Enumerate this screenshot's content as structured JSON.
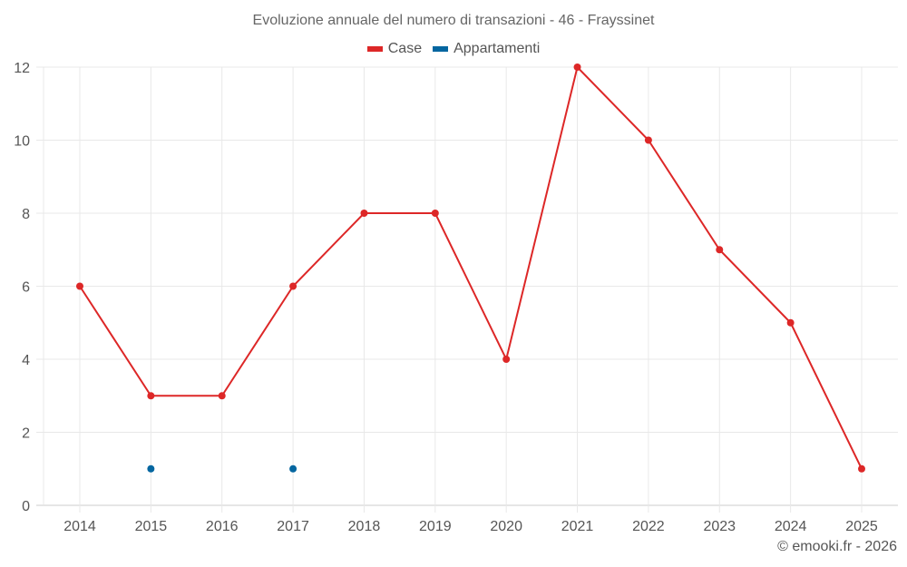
{
  "chart_data": {
    "type": "line",
    "title": "Evoluzione annuale del numero di transazioni - 46 - Frayssinet",
    "xlabel": "",
    "ylabel": "",
    "categories": [
      "2014",
      "2015",
      "2016",
      "2017",
      "2018",
      "2019",
      "2020",
      "2021",
      "2022",
      "2023",
      "2024",
      "2025"
    ],
    "series": [
      {
        "name": "Case",
        "color": "#dd2727",
        "values": [
          6,
          3,
          3,
          6,
          8,
          8,
          4,
          12,
          10,
          7,
          5,
          1
        ]
      },
      {
        "name": "Appartamenti",
        "color": "#0466a0",
        "values": [
          null,
          1,
          null,
          1,
          null,
          null,
          null,
          null,
          null,
          null,
          null,
          null
        ]
      }
    ],
    "ylim": [
      0,
      12
    ],
    "yticks": [
      0,
      2,
      4,
      6,
      8,
      10,
      12
    ],
    "grid": true,
    "legend_position": "top"
  },
  "header": {
    "title": "Evoluzione annuale del numero di transazioni - 46 - Frayssinet"
  },
  "legend": [
    {
      "label": "Case",
      "color": "#dd2727"
    },
    {
      "label": "Appartamenti",
      "color": "#0466a0"
    }
  ],
  "footer": {
    "credit": "© emooki.fr - 2026"
  },
  "colors": {
    "grid": "#e8e8e8",
    "axis": "#cccccc",
    "text": "#555555"
  }
}
